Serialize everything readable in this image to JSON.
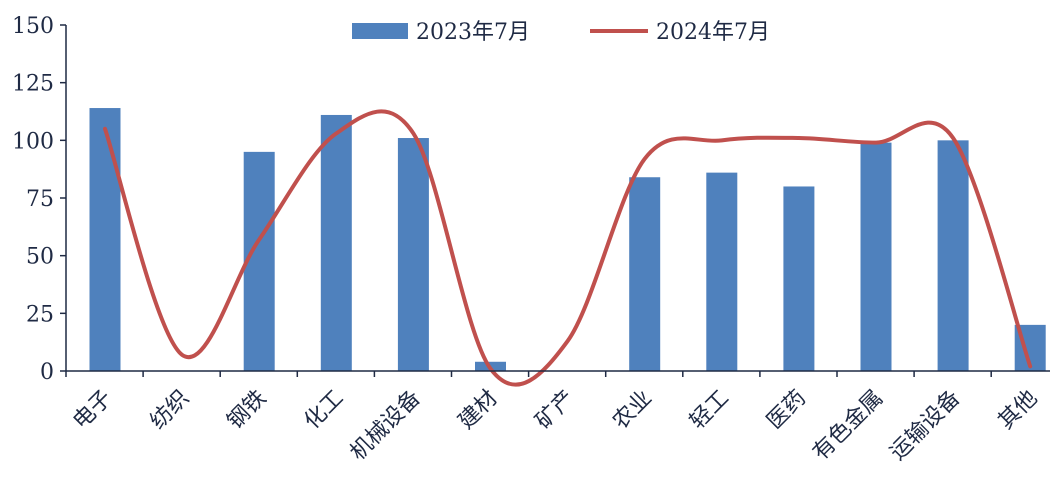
{
  "chart_data": {
    "type": "bar",
    "title": "",
    "xlabel": "",
    "ylabel": "",
    "ylim": [
      0,
      150
    ],
    "yticks": [
      0,
      25,
      50,
      75,
      100,
      125,
      150
    ],
    "categories": [
      "电子",
      "纺织",
      "钢铁",
      "化工",
      "机械设备",
      "建材",
      "矿产",
      "农业",
      "轻工",
      "医药",
      "有色金属",
      "运输设备",
      "其他"
    ],
    "series": [
      {
        "name": "2023年7月",
        "kind": "bar",
        "color": "#4f81bd",
        "values": [
          114,
          0,
          95,
          111,
          101,
          4,
          0,
          84,
          86,
          80,
          99,
          100,
          20
        ]
      },
      {
        "name": "2024年7月",
        "kind": "line",
        "smooth": true,
        "color": "#c0504d",
        "values": [
          105,
          7,
          57,
          103,
          103,
          1,
          13,
          92,
          100,
          101,
          99,
          101,
          2
        ]
      }
    ],
    "grid": false,
    "legend": "top-center"
  }
}
